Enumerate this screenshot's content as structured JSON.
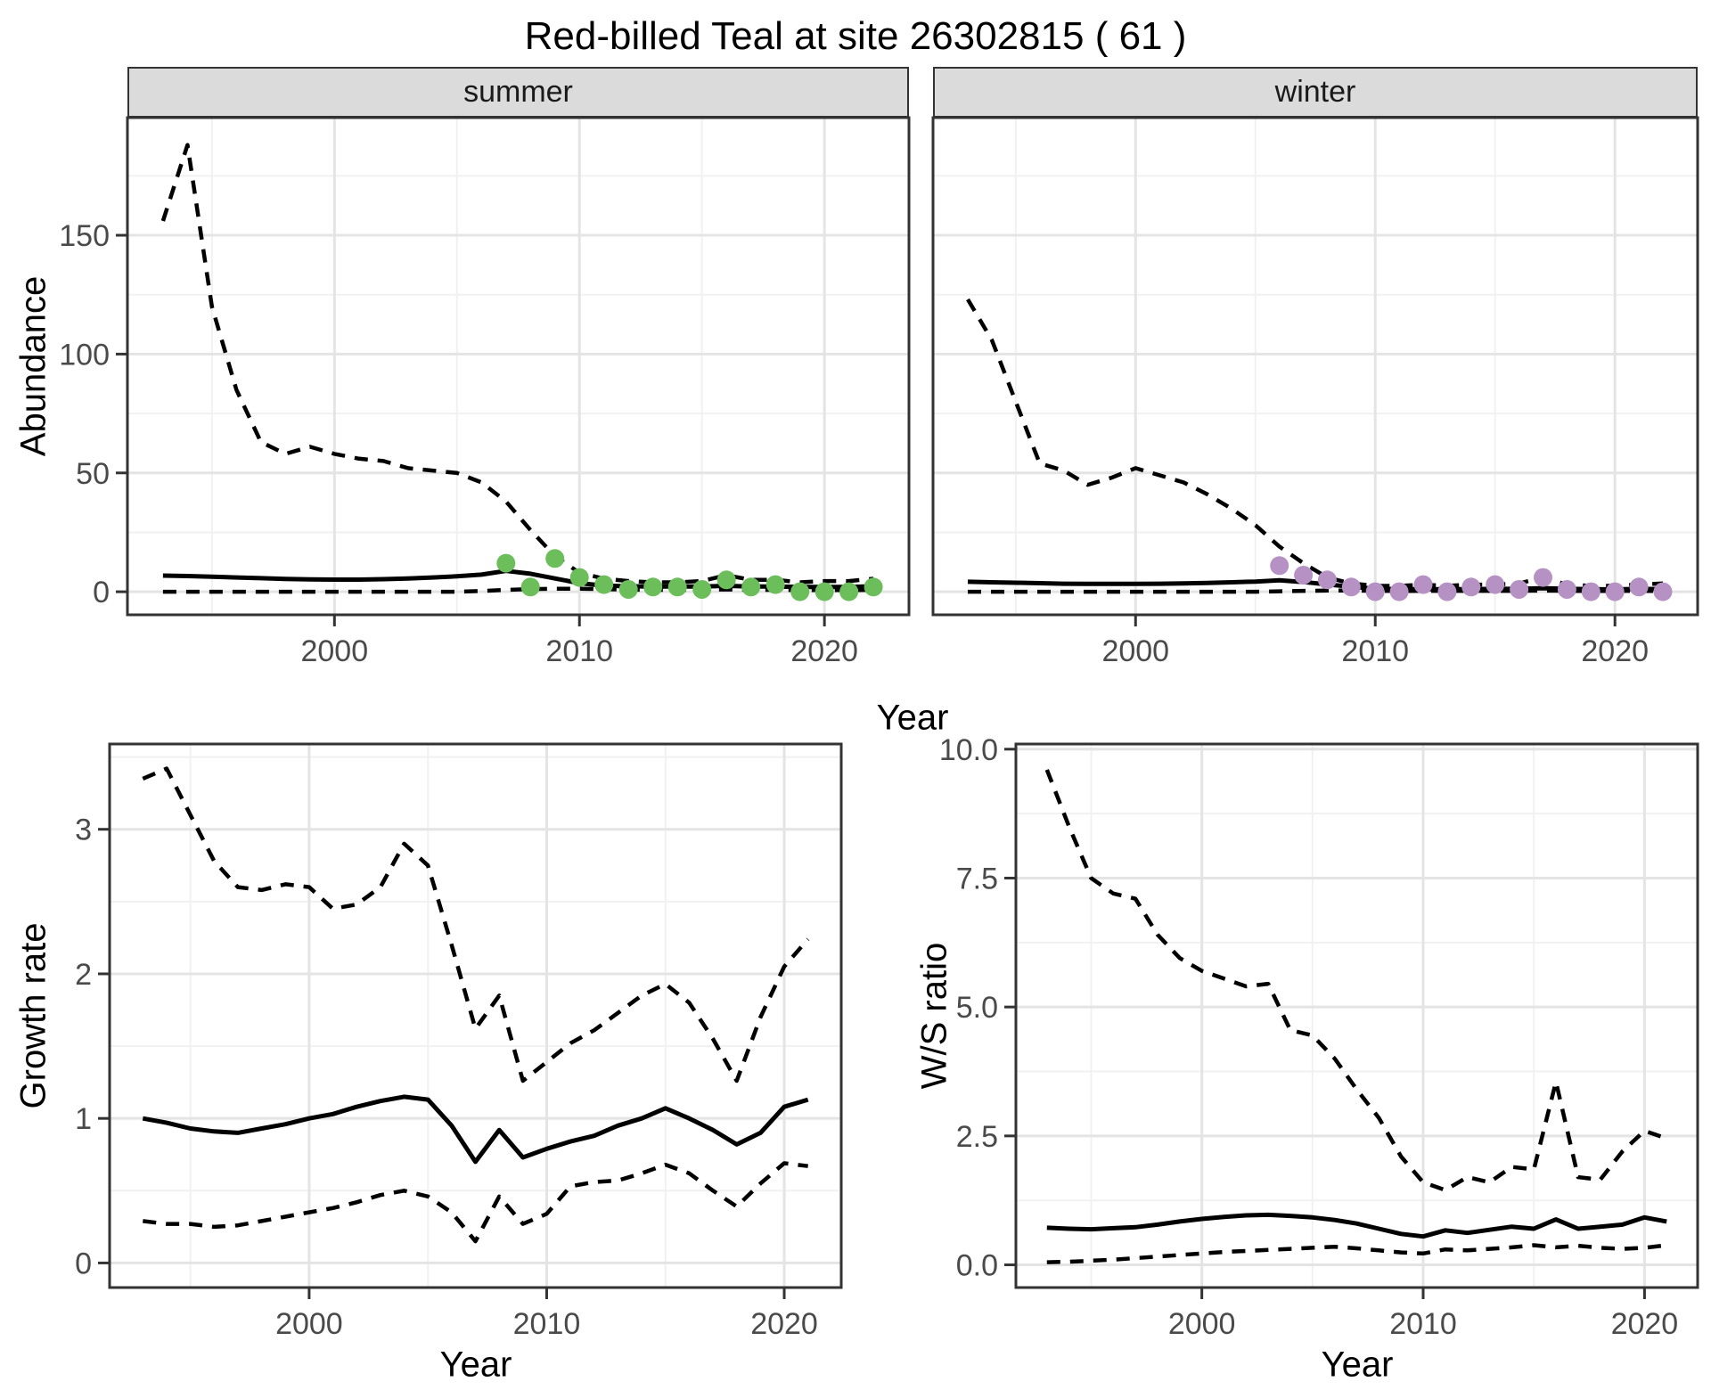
{
  "title": "Red-billed Teal at site 26302815 ( 61 )",
  "facets": {
    "summer": "summer",
    "winter": "winter"
  },
  "axis_labels": {
    "abundance": "Abundance",
    "year": "Year",
    "growth_rate": "Growth rate",
    "ws_ratio": "W/S ratio"
  },
  "colors": {
    "summer_points": "#6CBE5B",
    "winter_points": "#B691C4",
    "line": "#000000",
    "strip_fill": "#DBDBDB",
    "strip_border": "#333333",
    "panel_border": "#333333",
    "panel_background": "#FFFFFF",
    "grid_major": "#E4E4E4",
    "grid_minor": "#F1F1F1",
    "tick_text": "#4A4A4A"
  },
  "chart_data": [
    {
      "key": "abundance_summer",
      "type": "line",
      "facet_label": "summer",
      "xlabel": "Year",
      "ylabel": "Abundance",
      "xlim": [
        1991.55,
        2023.45
      ],
      "ylim": [
        -9.7,
        199.5
      ],
      "xticks": [
        2000,
        2010,
        2020
      ],
      "xtick_labels": [
        "2000",
        "2010",
        "2020"
      ],
      "xticks_minor": [
        1995,
        2005,
        2015
      ],
      "yticks": [
        0,
        50,
        100,
        150
      ],
      "ytick_labels": [
        "0",
        "50",
        "100",
        "150"
      ],
      "yticks_minor": [
        25,
        75,
        125,
        175
      ],
      "x": [
        1993,
        1994,
        1995,
        1996,
        1997,
        1998,
        1999,
        2000,
        2001,
        2002,
        2003,
        2004,
        2005,
        2006,
        2007,
        2008,
        2009,
        2010,
        2011,
        2012,
        2013,
        2014,
        2015,
        2016,
        2017,
        2018,
        2019,
        2020,
        2021,
        2022
      ],
      "series": [
        {
          "name": "upper_95ci",
          "linestyle": "dashed",
          "values": [
            156,
            188,
            120,
            85,
            63,
            58,
            61,
            58,
            56,
            55,
            52,
            51,
            50,
            46,
            38,
            26,
            15,
            8,
            5.5,
            4.5,
            4,
            4,
            4.5,
            7,
            5,
            5,
            4,
            4.5,
            4.5,
            5.5
          ]
        },
        {
          "name": "median",
          "linestyle": "solid",
          "values": [
            6.8,
            6.6,
            6.3,
            6,
            5.7,
            5.4,
            5.2,
            5.1,
            5.1,
            5.3,
            5.6,
            6,
            6.5,
            7.2,
            8.8,
            7.6,
            5.6,
            3.6,
            2.6,
            2.3,
            2.2,
            2.2,
            2.2,
            2.5,
            2.2,
            2.2,
            2,
            2,
            2,
            2.3
          ]
        },
        {
          "name": "lower_95ci",
          "linestyle": "dashed",
          "values": [
            0,
            0,
            0,
            0,
            0,
            0,
            0,
            0,
            0,
            0,
            0,
            0,
            0,
            0.3,
            0.8,
            1.1,
            1.3,
            1.3,
            1.1,
            0.9,
            0.8,
            0.8,
            0.8,
            1,
            0.8,
            0.8,
            0.7,
            0.7,
            0.7,
            0.8
          ]
        }
      ],
      "points": {
        "name": "observed_summer_counts",
        "color": "#6CBE5B",
        "x": [
          2007,
          2008,
          2009,
          2010,
          2011,
          2012,
          2013,
          2014,
          2015,
          2016,
          2017,
          2018,
          2019,
          2020,
          2021,
          2022
        ],
        "y": [
          12,
          2,
          14,
          6,
          3,
          1,
          2,
          2,
          1,
          5,
          2,
          3,
          0,
          0,
          0,
          2
        ]
      }
    },
    {
      "key": "abundance_winter",
      "type": "line",
      "facet_label": "winter",
      "xlabel": "Year",
      "ylabel": "Abundance",
      "xlim": [
        1991.55,
        2023.45
      ],
      "ylim": [
        -9.7,
        199.5
      ],
      "xticks": [
        2000,
        2010,
        2020
      ],
      "xtick_labels": [
        "2000",
        "2010",
        "2020"
      ],
      "xticks_minor": [
        1995,
        2005,
        2015
      ],
      "yticks": [
        0,
        50,
        100,
        150
      ],
      "ytick_labels": [
        "0",
        "50",
        "100",
        "150"
      ],
      "yticks_minor": [
        25,
        75,
        125,
        175
      ],
      "x": [
        1993,
        1994,
        1995,
        1996,
        1997,
        1998,
        1999,
        2000,
        2001,
        2002,
        2003,
        2004,
        2005,
        2006,
        2007,
        2008,
        2009,
        2010,
        2011,
        2012,
        2013,
        2014,
        2015,
        2016,
        2017,
        2018,
        2019,
        2020,
        2021,
        2022
      ],
      "series": [
        {
          "name": "upper_95ci",
          "linestyle": "dashed",
          "values": [
            123,
            106,
            80,
            54,
            51,
            45,
            48,
            52,
            49,
            46,
            41,
            35,
            28,
            19,
            12,
            6,
            3.5,
            2.5,
            2.5,
            3,
            2.5,
            3,
            3,
            3.5,
            6,
            3,
            2.5,
            2.5,
            3,
            3.5
          ]
        },
        {
          "name": "median",
          "linestyle": "solid",
          "values": [
            4.2,
            4,
            3.8,
            3.6,
            3.4,
            3.3,
            3.3,
            3.3,
            3.4,
            3.5,
            3.7,
            4,
            4.3,
            4.8,
            4.1,
            3.1,
            2.1,
            1.3,
            1.1,
            1.1,
            1.1,
            1.1,
            1.2,
            1.2,
            1.5,
            1.2,
            1.1,
            1,
            1.2,
            1.1
          ]
        },
        {
          "name": "lower_95ci",
          "linestyle": "dashed",
          "values": [
            0,
            0,
            0,
            0,
            0,
            0,
            0,
            0,
            0,
            0,
            0,
            0,
            0,
            0.2,
            0.4,
            0.5,
            0.5,
            0.4,
            0.3,
            0.4,
            0.4,
            0.4,
            0.4,
            0.4,
            0.5,
            0.4,
            0.3,
            0.3,
            0.4,
            0.3
          ]
        }
      ],
      "points": {
        "name": "observed_winter_counts",
        "color": "#B691C4",
        "x": [
          2006,
          2007,
          2008,
          2009,
          2010,
          2011,
          2012,
          2013,
          2014,
          2015,
          2016,
          2017,
          2018,
          2019,
          2020,
          2021,
          2022
        ],
        "y": [
          11,
          7,
          5,
          2,
          0,
          0,
          3,
          0,
          2,
          3,
          1,
          6,
          1,
          0,
          0,
          2,
          0
        ]
      }
    },
    {
      "key": "growth_rate",
      "type": "line",
      "facet_label": "",
      "xlabel": "Year",
      "ylabel": "Growth rate",
      "xlim": [
        1991.6,
        2022.4
      ],
      "ylim": [
        -0.17,
        3.59
      ],
      "xticks": [
        2000,
        2010,
        2020
      ],
      "xtick_labels": [
        "2000",
        "2010",
        "2020"
      ],
      "xticks_minor": [
        1995,
        2005,
        2015
      ],
      "yticks": [
        0,
        1,
        2,
        3
      ],
      "ytick_labels": [
        "0",
        "1",
        "2",
        "3"
      ],
      "yticks_minor": [
        0.5,
        1.5,
        2.5,
        3.5
      ],
      "x": [
        1993,
        1994,
        1995,
        1996,
        1997,
        1998,
        1999,
        2000,
        2001,
        2002,
        2003,
        2004,
        2005,
        2006,
        2007,
        2008,
        2009,
        2010,
        2011,
        2012,
        2013,
        2014,
        2015,
        2016,
        2017,
        2018,
        2019,
        2020,
        2021
      ],
      "series": [
        {
          "name": "upper_95ci",
          "linestyle": "dashed",
          "values": [
            3.35,
            3.42,
            3.1,
            2.78,
            2.6,
            2.58,
            2.62,
            2.6,
            2.45,
            2.48,
            2.6,
            2.9,
            2.75,
            2.2,
            1.62,
            1.85,
            1.26,
            1.39,
            1.52,
            1.61,
            1.73,
            1.85,
            1.93,
            1.8,
            1.55,
            1.26,
            1.7,
            2.05,
            2.24
          ]
        },
        {
          "name": "median",
          "linestyle": "solid",
          "values": [
            1.0,
            0.97,
            0.93,
            0.91,
            0.9,
            0.93,
            0.96,
            1.0,
            1.03,
            1.08,
            1.12,
            1.15,
            1.13,
            0.95,
            0.7,
            0.92,
            0.73,
            0.79,
            0.84,
            0.88,
            0.95,
            1.0,
            1.07,
            1.0,
            0.92,
            0.82,
            0.9,
            1.08,
            1.13
          ]
        },
        {
          "name": "lower_95ci",
          "linestyle": "dashed",
          "values": [
            0.29,
            0.27,
            0.27,
            0.25,
            0.26,
            0.29,
            0.32,
            0.35,
            0.38,
            0.42,
            0.47,
            0.5,
            0.46,
            0.35,
            0.15,
            0.46,
            0.27,
            0.34,
            0.53,
            0.56,
            0.57,
            0.62,
            0.68,
            0.62,
            0.5,
            0.39,
            0.55,
            0.69,
            0.67
          ]
        }
      ]
    },
    {
      "key": "ws_ratio",
      "type": "line",
      "facet_label": "",
      "xlabel": "Year",
      "ylabel": "W/S ratio",
      "xlim": [
        1991.6,
        2022.4
      ],
      "ylim": [
        -0.44,
        10.1
      ],
      "xticks": [
        2000,
        2010,
        2020
      ],
      "xtick_labels": [
        "2000",
        "2010",
        "2020"
      ],
      "xticks_minor": [
        1995,
        2005,
        2015
      ],
      "yticks": [
        0,
        2.5,
        5,
        7.5,
        10
      ],
      "ytick_labels": [
        "0.0",
        "2.5",
        "5.0",
        "7.5",
        "10.0"
      ],
      "yticks_minor": [
        1.25,
        3.75,
        6.25,
        8.75
      ],
      "x": [
        1993,
        1994,
        1995,
        1996,
        1997,
        1998,
        1999,
        2000,
        2001,
        2002,
        2003,
        2004,
        2005,
        2006,
        2007,
        2008,
        2009,
        2010,
        2011,
        2012,
        2013,
        2014,
        2015,
        2016,
        2017,
        2018,
        2019,
        2020,
        2021
      ],
      "series": [
        {
          "name": "upper_95ci",
          "linestyle": "dashed",
          "values": [
            9.6,
            8.5,
            7.5,
            7.2,
            7.1,
            6.4,
            5.95,
            5.7,
            5.55,
            5.4,
            5.45,
            4.55,
            4.45,
            4.0,
            3.4,
            2.85,
            2.1,
            1.6,
            1.45,
            1.7,
            1.6,
            1.9,
            1.85,
            3.55,
            1.7,
            1.65,
            2.2,
            2.6,
            2.45
          ]
        },
        {
          "name": "median",
          "linestyle": "solid",
          "values": [
            0.72,
            0.7,
            0.69,
            0.71,
            0.73,
            0.78,
            0.84,
            0.89,
            0.93,
            0.96,
            0.97,
            0.95,
            0.92,
            0.87,
            0.8,
            0.7,
            0.6,
            0.55,
            0.67,
            0.62,
            0.68,
            0.74,
            0.7,
            0.88,
            0.7,
            0.74,
            0.78,
            0.92,
            0.84
          ]
        },
        {
          "name": "lower_95ci",
          "linestyle": "dashed",
          "values": [
            0.05,
            0.06,
            0.08,
            0.1,
            0.13,
            0.16,
            0.19,
            0.22,
            0.25,
            0.27,
            0.29,
            0.31,
            0.33,
            0.35,
            0.32,
            0.28,
            0.24,
            0.22,
            0.3,
            0.28,
            0.31,
            0.34,
            0.38,
            0.34,
            0.37,
            0.33,
            0.31,
            0.33,
            0.38
          ]
        }
      ]
    }
  ]
}
